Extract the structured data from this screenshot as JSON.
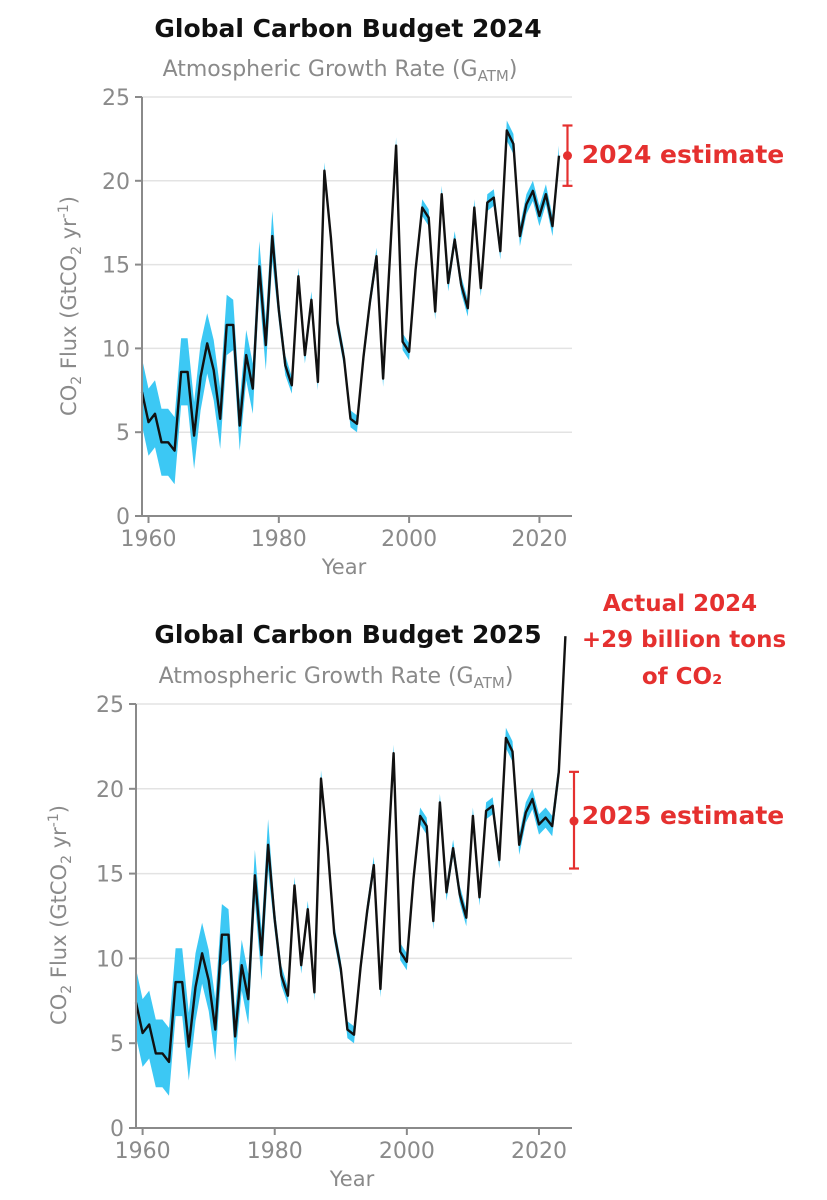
{
  "chart_data": [
    {
      "type": "line",
      "title": "Global Carbon Budget 2024",
      "subtitle_main": "Atmospheric Growth Rate (G",
      "subtitle_sub": "ATM",
      "subtitle_end": ")",
      "xlabel": "Year",
      "ylabel_main": "CO",
      "ylabel_sub": "2",
      "ylabel_mid": " Flux (GtCO",
      "ylabel_sub2": "2",
      "ylabel_mid2": " yr",
      "ylabel_sup": "-1",
      "ylabel_end": ")",
      "xlim": [
        1959,
        2025
      ],
      "ylim": [
        0,
        25
      ],
      "xticks": [
        1960,
        1980,
        2000,
        2020
      ],
      "yticks": [
        0,
        5,
        10,
        15,
        20,
        25
      ],
      "series_name": "Atmospheric growth rate",
      "years_start": 1959,
      "values": [
        7.4,
        5.6,
        6.1,
        4.4,
        4.4,
        3.9,
        8.6,
        8.6,
        4.8,
        8.3,
        10.3,
        8.7,
        5.8,
        11.4,
        11.4,
        5.4,
        9.6,
        7.6,
        14.9,
        10.2,
        16.7,
        12.3,
        9.0,
        7.8,
        14.3,
        9.6,
        12.9,
        8.0,
        20.6,
        16.6,
        11.5,
        9.4,
        5.8,
        5.5,
        9.5,
        12.8,
        15.5,
        8.2,
        15.1,
        22.1,
        10.4,
        9.8,
        14.7,
        18.4,
        17.8,
        12.2,
        19.2,
        13.9,
        16.5,
        13.8,
        12.4,
        18.4,
        13.6,
        18.7,
        19.0,
        15.8,
        23.0,
        22.2,
        16.7,
        18.6,
        19.4,
        17.9,
        19.2,
        17.3,
        21.5
      ],
      "uncertainty": [
        2.0,
        2.0,
        2.0,
        2.0,
        2.0,
        2.0,
        2.0,
        2.0,
        2.0,
        2.0,
        1.8,
        1.8,
        1.8,
        1.8,
        1.5,
        1.5,
        1.5,
        1.5,
        1.5,
        1.5,
        1.5,
        0.7,
        0.6,
        0.5,
        0.5,
        0.5,
        0.5,
        0.5,
        0.5,
        0.5,
        0.5,
        0.5,
        0.5,
        0.5,
        0.5,
        0.5,
        0.5,
        0.5,
        0.5,
        0.5,
        0.5,
        0.5,
        0.5,
        0.5,
        0.5,
        0.5,
        0.5,
        0.5,
        0.5,
        0.5,
        0.5,
        0.5,
        0.5,
        0.5,
        0.5,
        0.5,
        0.6,
        0.6,
        0.6,
        0.6,
        0.6,
        0.6,
        0.6,
        0.6,
        0.6
      ],
      "estimate": {
        "label": "2024 estimate",
        "year": 2024,
        "value": 21.5,
        "low": 19.7,
        "high": 23.3
      },
      "annotation": null
    },
    {
      "type": "line",
      "title": "Global Carbon Budget 2025",
      "subtitle_main": "Atmospheric Growth Rate (G",
      "subtitle_sub": "ATM",
      "subtitle_end": ")",
      "xlabel": "Year",
      "ylabel_main": "CO",
      "ylabel_sub": "2",
      "ylabel_mid": " Flux (GtCO",
      "ylabel_sub2": "2",
      "ylabel_mid2": " yr",
      "ylabel_sup": "-1",
      "ylabel_end": ")",
      "xlim": [
        1959,
        2025
      ],
      "ylim": [
        0,
        25
      ],
      "xticks": [
        1960,
        1980,
        2000,
        2020
      ],
      "yticks": [
        0,
        5,
        10,
        15,
        20,
        25
      ],
      "series_name": "Atmospheric growth rate",
      "years_start": 1959,
      "values": [
        7.4,
        5.6,
        6.1,
        4.4,
        4.4,
        3.9,
        8.6,
        8.6,
        4.8,
        8.3,
        10.3,
        8.7,
        5.8,
        11.4,
        11.4,
        5.4,
        9.6,
        7.6,
        14.9,
        10.2,
        16.7,
        12.3,
        9.0,
        7.8,
        14.3,
        9.6,
        12.9,
        8.0,
        20.6,
        16.6,
        11.5,
        9.4,
        5.8,
        5.5,
        9.5,
        12.8,
        15.5,
        8.2,
        15.1,
        22.1,
        10.4,
        9.8,
        14.7,
        18.4,
        17.8,
        12.2,
        19.2,
        13.9,
        16.5,
        13.8,
        12.4,
        18.4,
        13.6,
        18.7,
        19.0,
        15.8,
        23.0,
        22.2,
        16.7,
        18.6,
        19.4,
        17.9,
        18.3,
        17.8,
        21.0,
        29.0
      ],
      "uncertainty": [
        2.0,
        2.0,
        2.0,
        2.0,
        2.0,
        2.0,
        2.0,
        2.0,
        2.0,
        2.0,
        1.8,
        1.8,
        1.8,
        1.8,
        1.5,
        1.5,
        1.5,
        1.5,
        1.5,
        1.5,
        1.5,
        0.7,
        0.6,
        0.5,
        0.5,
        0.5,
        0.5,
        0.5,
        0.5,
        0.5,
        0.5,
        0.5,
        0.5,
        0.5,
        0.5,
        0.5,
        0.5,
        0.5,
        0.5,
        0.5,
        0.5,
        0.5,
        0.5,
        0.5,
        0.5,
        0.5,
        0.5,
        0.5,
        0.5,
        0.5,
        0.5,
        0.5,
        0.5,
        0.5,
        0.5,
        0.5,
        0.6,
        0.6,
        0.6,
        0.6,
        0.6,
        0.6,
        0.6,
        0.6,
        0.6,
        0.0
      ],
      "band_count": 65,
      "estimate": {
        "label": "2025 estimate",
        "year": 2025,
        "value": 18.1,
        "low": 15.3,
        "high": 21.0
      },
      "annotation": {
        "lines": [
          "Actual 2024",
          "+29 billion tons",
          "of CO₂"
        ]
      }
    }
  ],
  "colors": {
    "line": "#111111",
    "band": "#3cc8f4",
    "estimate": "#e5302f",
    "axis": "#8a8a8a",
    "grid": "#e3e3e3"
  }
}
